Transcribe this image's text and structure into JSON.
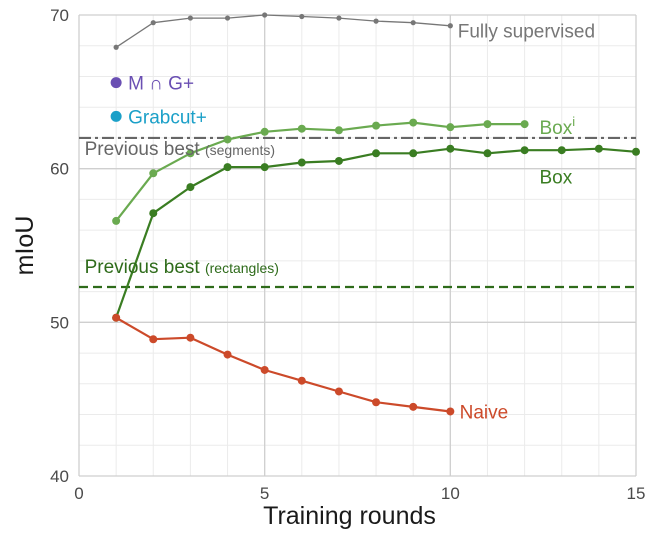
{
  "chart_data": {
    "type": "line",
    "xlabel": "Training rounds",
    "ylabel": "mIoU",
    "xlim": [
      0,
      15
    ],
    "ylim": [
      40,
      70
    ],
    "xticks": [
      0,
      5,
      10,
      15
    ],
    "yticks": [
      40,
      50,
      60,
      70
    ],
    "grid": true,
    "series": [
      {
        "name": "Fully supervised",
        "color": "#777777",
        "x": [
          1,
          2,
          3,
          4,
          5,
          6,
          7,
          8,
          9,
          10
        ],
        "values": [
          67.9,
          69.5,
          69.8,
          69.8,
          70.0,
          69.9,
          69.8,
          69.6,
          69.5,
          69.3
        ]
      },
      {
        "name_base": "Box",
        "name_sup": "i",
        "color": "#6aaa50",
        "x": [
          1,
          2,
          3,
          4,
          5,
          6,
          7,
          8,
          9,
          10,
          11,
          12
        ],
        "values": [
          56.6,
          59.7,
          61.0,
          61.9,
          62.4,
          62.6,
          62.5,
          62.8,
          63.0,
          62.7,
          62.9,
          62.9
        ]
      },
      {
        "name": "Box",
        "color": "#3a7d22",
        "x": [
          1,
          2,
          3,
          4,
          5,
          6,
          7,
          8,
          9,
          10,
          11,
          12,
          13,
          14,
          15
        ],
        "values": [
          50.3,
          57.1,
          58.8,
          60.1,
          60.1,
          60.4,
          60.5,
          61.0,
          61.0,
          61.3,
          61.0,
          61.2,
          61.2,
          61.3,
          61.1
        ]
      },
      {
        "name": "Naive",
        "color": "#cc4a2a",
        "x": [
          1,
          2,
          3,
          4,
          5,
          6,
          7,
          8,
          9,
          10
        ],
        "values": [
          50.3,
          48.9,
          49.0,
          47.9,
          46.9,
          46.2,
          45.5,
          44.8,
          44.5,
          44.2
        ]
      }
    ],
    "reference_lines": [
      {
        "label_main": "Previous best",
        "label_sub": "(segments)",
        "y": 62.0,
        "color": "#666666",
        "style": "dashdot"
      },
      {
        "label_main": "Previous best",
        "label_sub": "(rectangles)",
        "y": 52.3,
        "color": "#2e6b1a",
        "style": "dashed"
      }
    ],
    "single_points": [
      {
        "name": "M ∩ G+",
        "x": 1,
        "y": 65.6,
        "color": "#6a4fb3"
      },
      {
        "name": "Grabcut+",
        "x": 1,
        "y": 63.4,
        "color": "#1ba0c8"
      }
    ]
  }
}
